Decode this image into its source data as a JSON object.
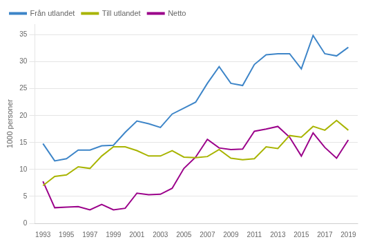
{
  "chart_data": {
    "type": "line",
    "ylabel": "1000 personer",
    "x": [
      1993,
      1994,
      1995,
      1996,
      1997,
      1998,
      1999,
      2000,
      2001,
      2002,
      2003,
      2004,
      2005,
      2006,
      2007,
      2008,
      2009,
      2010,
      2011,
      2012,
      2013,
      2014,
      2015,
      2016,
      2017,
      2018,
      2019
    ],
    "series": [
      {
        "name": "Från utlandet",
        "color": "#3d85c8",
        "values": [
          14.8,
          11.6,
          12.0,
          13.6,
          13.6,
          14.4,
          14.5,
          16.9,
          19.0,
          18.5,
          17.8,
          20.3,
          21.4,
          22.5,
          26.0,
          29.1,
          26.0,
          25.6,
          29.5,
          31.3,
          31.5,
          31.5,
          28.7,
          34.9,
          31.5,
          31.1,
          32.7
        ]
      },
      {
        "name": "Till utlandet",
        "color": "#a8b400",
        "values": [
          7.0,
          8.7,
          9.0,
          10.5,
          10.2,
          12.5,
          14.2,
          14.2,
          13.5,
          12.5,
          12.5,
          13.5,
          12.3,
          12.2,
          12.4,
          13.7,
          12.1,
          11.8,
          12.0,
          14.2,
          13.9,
          16.3,
          16.0,
          18.0,
          17.3,
          19.1,
          17.3
        ]
      },
      {
        "name": "Netto",
        "color": "#9b008a",
        "values": [
          7.8,
          2.9,
          3.0,
          3.1,
          2.5,
          3.5,
          2.5,
          2.8,
          5.6,
          5.3,
          5.4,
          6.5,
          10.2,
          12.3,
          15.6,
          14.0,
          13.7,
          13.8,
          17.1,
          17.5,
          18.0,
          16.0,
          12.5,
          16.8,
          14.1,
          12.1,
          15.5
        ]
      }
    ],
    "xlim": [
      1992.3,
      2019.8
    ],
    "xticks": [
      1993,
      1995,
      1997,
      1999,
      2001,
      2003,
      2005,
      2007,
      2009,
      2011,
      2013,
      2015,
      2017,
      2019
    ],
    "ylim": [
      0,
      37
    ],
    "yticks": [
      0,
      5,
      10,
      15,
      20,
      25,
      30,
      35
    ],
    "grid": "y",
    "legend": "upper left"
  }
}
